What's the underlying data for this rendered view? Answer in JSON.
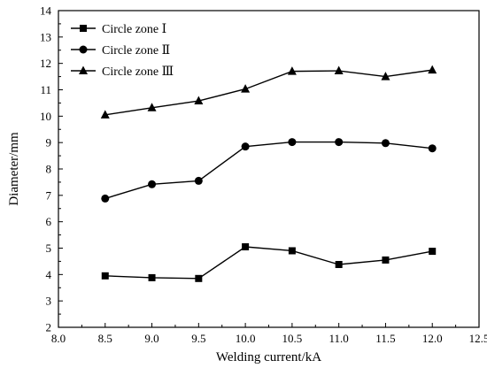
{
  "chart_data": {
    "type": "line",
    "xlabel": "Welding current/kA",
    "ylabel": "Diameter/mm",
    "xlim": [
      8.0,
      12.5
    ],
    "ylim": [
      2,
      14
    ],
    "xticks": [
      "8.0",
      "8.5",
      "9.0",
      "9.5",
      "10.0",
      "10.5",
      "11.0",
      "11.5",
      "12.0",
      "12.5"
    ],
    "yticks": [
      "2",
      "3",
      "4",
      "5",
      "6",
      "7",
      "8",
      "9",
      "10",
      "11",
      "12",
      "13",
      "14"
    ],
    "x": [
      8.5,
      9.0,
      9.5,
      10.0,
      10.5,
      11.0,
      11.5,
      12.0
    ],
    "grid": false,
    "legend_position": "top-left",
    "series": [
      {
        "name": "Circle zone Ⅰ",
        "marker": "square",
        "values": [
          3.95,
          3.88,
          3.85,
          5.05,
          4.9,
          4.38,
          4.55,
          4.88
        ]
      },
      {
        "name": "Circle zone Ⅱ",
        "marker": "circle",
        "values": [
          6.88,
          7.42,
          7.55,
          8.85,
          9.02,
          9.02,
          8.98,
          8.78
        ]
      },
      {
        "name": "Circle zone Ⅲ",
        "marker": "triangle",
        "values": [
          10.05,
          10.32,
          10.58,
          11.03,
          11.7,
          11.72,
          11.5,
          11.75
        ]
      }
    ]
  }
}
